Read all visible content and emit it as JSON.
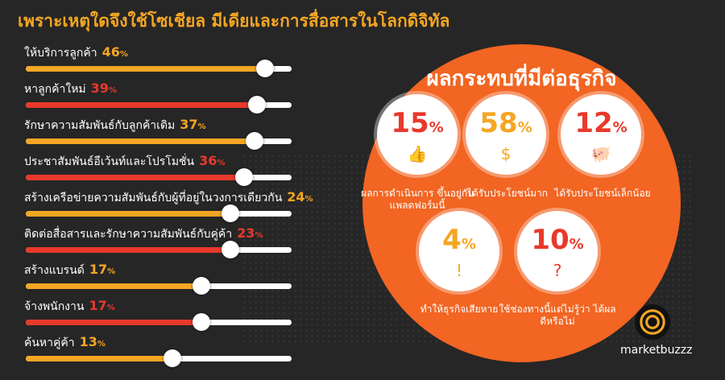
{
  "title": "เพราะเหตุใดจึงใช้โซเชียล มีเดียและการสื่อสารในโลกดิจิทัล",
  "colors": {
    "orange": "#f5a623",
    "red": "#e8392b",
    "circle": "#f26522"
  },
  "reasons": [
    {
      "label": "ให้บริการลูกค้า",
      "value": "46",
      "unit": "%",
      "fraction": 0.9,
      "color": "#f5a623"
    },
    {
      "label": "หาลูกค้าใหม่",
      "value": "39",
      "unit": "%",
      "fraction": 0.87,
      "color": "#e8392b"
    },
    {
      "label": "รักษาความสัมพันธ์กับลูกค้าเดิม",
      "value": "37",
      "unit": "%",
      "fraction": 0.86,
      "color": "#f5a623"
    },
    {
      "label": "ประชาสัมพันธ์อีเว้นท์และโปรโมชั่น",
      "value": "36",
      "unit": "%",
      "fraction": 0.82,
      "color": "#e8392b"
    },
    {
      "label": "สร้างเครือข่ายความสัมพันธ์กับผู้ที่อยู่ในวงการเดียวกัน",
      "value": "24",
      "unit": "%",
      "fraction": 0.77,
      "color": "#f5a623"
    },
    {
      "label": "ติดต่อสื่อสารและรักษาความสัมพันธ์กับคู่ค้า",
      "value": "23",
      "unit": "%",
      "fraction": 0.77,
      "color": "#e8392b"
    },
    {
      "label": "สร้างแบรนด์",
      "value": "17",
      "unit": "%",
      "fraction": 0.66,
      "color": "#f5a623"
    },
    {
      "label": "จ้างพนักงาน",
      "value": "17",
      "unit": "%",
      "fraction": 0.66,
      "color": "#e8392b"
    },
    {
      "label": "ค้นหาคู่ค้า",
      "value": "13",
      "unit": "%",
      "fraction": 0.55,
      "color": "#f5a623"
    }
  ],
  "impact": {
    "title": "ผลกระทบที่มีต่อธุรกิจ",
    "items": [
      {
        "value": "15",
        "unit": "%",
        "caption": "ผลการดำเนินการ ขึ้นอยู่กับแพลตฟอร์มนี้",
        "icon": "thumbs-up-icon",
        "glyph": "👍",
        "color": "#e8392b"
      },
      {
        "value": "58",
        "unit": "%",
        "caption": "ได้รับประโยชน์มาก",
        "icon": "money-hand-icon",
        "glyph": "$",
        "color": "#f5a623"
      },
      {
        "value": "12",
        "unit": "%",
        "caption": "ได้รับประโยชน์เล็กน้อย",
        "icon": "piggy-bank-icon",
        "glyph": "🐖",
        "color": "#e8392b"
      },
      {
        "value": "4",
        "unit": "%",
        "caption": "ทำให้ธุรกิจเสียหาย",
        "icon": "alert-bubble-icon",
        "glyph": "!",
        "color": "#f5a623"
      },
      {
        "value": "10",
        "unit": "%",
        "caption": "ใช้ช่องทางนี้แต่ไม่รู้ว่า ได้ผลดีหรือไม่",
        "icon": "question-person-icon",
        "glyph": "?",
        "color": "#e8392b"
      }
    ]
  },
  "brand": "marketbuzzz"
}
